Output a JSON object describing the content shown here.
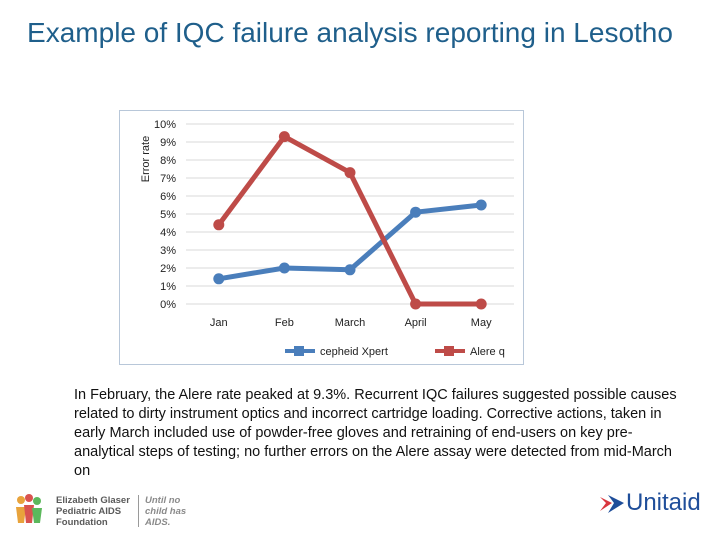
{
  "slide": {
    "title": "Example of IQC failure analysis reporting in Lesotho",
    "body": "In February, the Alere rate peaked at 9.3%. Recurrent IQC failures suggested possible causes related to dirty instrument optics and incorrect cartridge loading. Corrective actions, taken in early March included use of powder-free gloves and retraining of end-users on key pre-analytical steps of testing; no further errors on the Alere assay were detected from mid-March on"
  },
  "chart_data": {
    "type": "line",
    "title": "",
    "xlabel": "",
    "ylabel": "Error rate",
    "categories": [
      "Jan",
      "Feb",
      "March",
      "April",
      "May"
    ],
    "y_ticks": [
      "0%",
      "1%",
      "2%",
      "3%",
      "4%",
      "5%",
      "6%",
      "7%",
      "8%",
      "9%",
      "10%"
    ],
    "ylim": [
      0,
      10
    ],
    "grid": true,
    "legend_position": "bottom",
    "series": [
      {
        "name": "cepheid Xpert",
        "color": "#4a7ebb",
        "values": [
          1.4,
          2.0,
          1.9,
          5.1,
          5.5
        ]
      },
      {
        "name": "Alere q",
        "color": "#be4b48",
        "values": [
          4.4,
          9.3,
          7.3,
          0.0,
          0.0
        ]
      }
    ]
  },
  "footer": {
    "egpaf_name": "Elizabeth Glaser\nPediatric AIDS\nFoundation",
    "egpaf_tagline": "Until no\nchild has\nAIDS.",
    "unitaid_name": "Unitaid"
  }
}
